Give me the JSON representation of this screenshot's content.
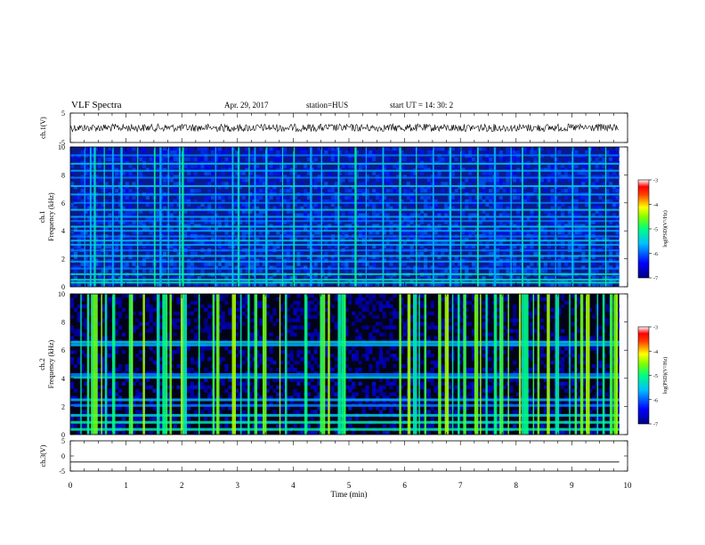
{
  "header": {
    "title": "VLF Spectra",
    "date": "Apr. 29, 2017",
    "station": "station=HUS",
    "start": "start  UT =   14: 30: 2"
  },
  "chart_data": [
    {
      "type": "line",
      "panel": "ch1-waveform",
      "ylabel": "ch.1(V)",
      "ylim": [
        -5,
        5
      ],
      "yticks": [
        5,
        -5
      ],
      "xlim": [
        0,
        10
      ],
      "series": [
        {
          "x": [
            0,
            9.85
          ],
          "values": [
            0,
            0
          ],
          "noise_amplitude": 0.6
        }
      ]
    },
    {
      "type": "heatmap",
      "panel": "ch1-spectrogram",
      "ylabel": "ch.1 Frequency (kHz)",
      "ylim": [
        0,
        10
      ],
      "yticks": [
        0,
        2,
        4,
        6,
        8,
        10
      ],
      "xlim": [
        0,
        10
      ],
      "data_xmax": 9.85,
      "horizontal_lines_khz": [
        0.3,
        0.5,
        0.9,
        1.3,
        1.8,
        2.2,
        2.6,
        3.0,
        3.3,
        3.6,
        4.0,
        4.3,
        4.7,
        5.0,
        5.5,
        6.0,
        6.6,
        7.2,
        7.8,
        8.3,
        8.8,
        9.4
      ],
      "vertical_bursts_min": [
        0.25,
        0.35,
        0.42,
        0.6,
        0.75,
        0.9,
        1.2,
        1.5,
        1.6,
        1.75,
        1.95,
        2.0,
        2.6,
        2.9,
        3.0,
        3.2,
        3.3,
        3.5,
        3.8,
        4.0,
        4.3,
        4.5,
        4.8,
        5.1,
        5.3,
        5.6,
        5.9,
        6.2,
        6.5,
        6.8,
        7.0,
        7.3,
        7.6,
        7.9,
        8.1,
        8.4,
        8.7,
        9.0,
        9.3,
        9.6
      ]
    },
    {
      "type": "heatmap",
      "panel": "ch2-spectrogram",
      "ylabel": "ch.2 Frequency (kHz)",
      "ylim": [
        0,
        10
      ],
      "yticks": [
        0,
        2,
        4,
        6,
        8,
        10
      ],
      "xlim": [
        0,
        10
      ],
      "data_xmax": 9.85,
      "horizontal_bands_khz": [
        0.4,
        0.9,
        1.4,
        2.1,
        2.5,
        4.1,
        4.3,
        6.4,
        6.6
      ],
      "vertical_bursts_min": [
        0.18,
        0.3,
        0.37,
        0.42,
        0.55,
        0.62,
        0.75,
        1.05,
        1.1,
        1.3,
        1.55,
        1.65,
        1.72,
        1.78,
        1.98,
        2.02,
        2.3,
        2.55,
        2.62,
        2.9,
        3.05,
        3.18,
        3.3,
        3.45,
        3.75,
        3.85,
        4.2,
        4.48,
        4.55,
        4.62,
        4.8,
        4.86,
        4.92,
        5.9,
        6.05,
        6.15,
        6.25,
        6.35,
        6.6,
        6.72,
        6.85,
        6.95,
        7.05,
        7.25,
        7.35,
        7.45,
        7.6,
        7.7,
        7.85,
        8.05,
        8.1,
        8.15,
        8.3,
        8.38,
        8.55,
        8.7,
        8.95,
        9.05,
        9.15,
        9.25,
        9.45,
        9.55,
        9.68,
        9.75,
        9.8
      ]
    },
    {
      "type": "line",
      "panel": "ch3-waveform",
      "ylabel": "ch.3(V)",
      "ylim": [
        -5,
        5
      ],
      "yticks": [
        5,
        0,
        -5
      ],
      "xlim": [
        0,
        10
      ],
      "xlabel": "Time  (min)",
      "xticks": [
        0,
        1,
        2,
        3,
        4,
        5,
        6,
        7,
        8,
        9,
        10
      ],
      "series": [
        {
          "x": [
            0,
            9.85
          ],
          "values": [
            -2,
            -2
          ]
        }
      ]
    }
  ],
  "colorbars": [
    {
      "label": "log(PSD)(V²/Hz)",
      "ticks": [
        -3,
        -4,
        -5,
        -6,
        -7
      ],
      "range": [
        -7,
        -3
      ]
    },
    {
      "label": "log(PSD)(V²/Hz)",
      "ticks": [
        -3,
        -4,
        -5,
        -6,
        -7
      ],
      "range": [
        -7,
        -3
      ]
    }
  ]
}
